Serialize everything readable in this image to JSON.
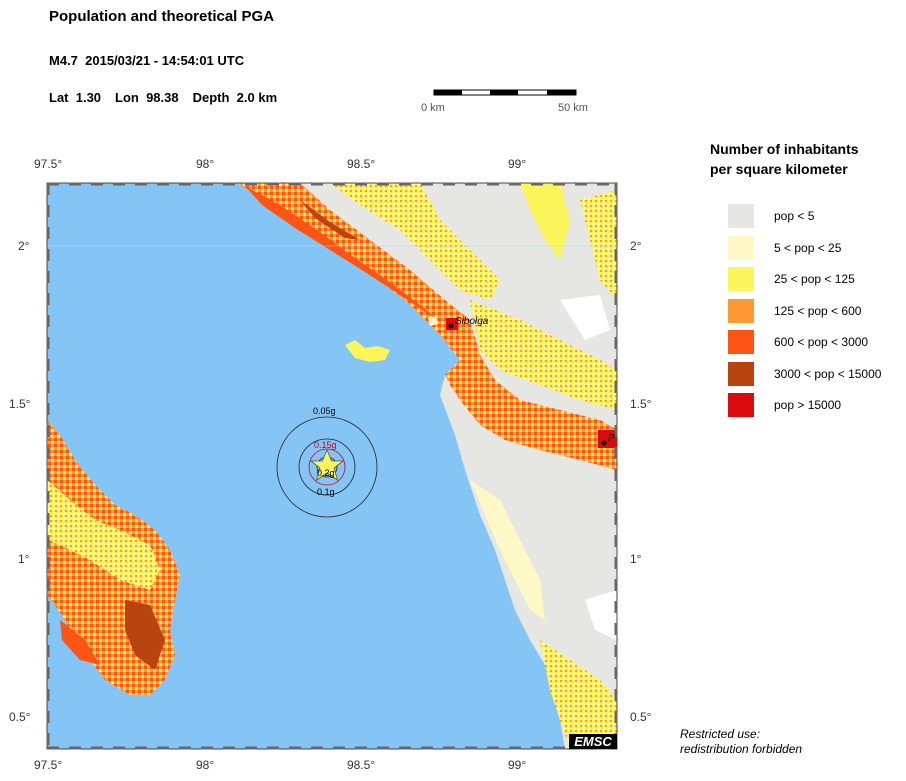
{
  "header": {
    "title": "Population and theoretical PGA",
    "event": "M4.7  2015/03/21 - 14:54:01 UTC",
    "lat": "Lat  1.30",
    "lon": "Lon  98.38",
    "depth": "Depth  2.0 km"
  },
  "scalebar": {
    "start_label": "0 km",
    "end_label": "50 km"
  },
  "legend": {
    "title_line1": "Number of inhabitants",
    "title_line2": "per square kilometer",
    "items": [
      {
        "label": "pop < 5",
        "color": "#e6e6e3"
      },
      {
        "label": "5 < pop < 25",
        "color": "#fdf8c6"
      },
      {
        "label": "25 < pop < 125",
        "color": "#fdf65a"
      },
      {
        "label": "125 < pop < 600",
        "color": "#fd9a32"
      },
      {
        "label": "600 < pop < 3000",
        "color": "#fd5516"
      },
      {
        "label": "3000 < pop < 15000",
        "color": "#b8440f"
      },
      {
        "label": "pop > 15000",
        "color": "#d90b0b"
      }
    ]
  },
  "map": {
    "lon_ticks": [
      "97.5°",
      "98°",
      "98.5°",
      "99°"
    ],
    "lat_ticks": [
      "2°",
      "1.5°",
      "1°",
      "0.5°"
    ],
    "sea_color": "#85c5f5",
    "pga_labels": [
      "0.05g",
      "0.15g",
      "0.2g",
      "0.1g"
    ],
    "city_label": "Sibolga",
    "city_label_2": "P",
    "badge": "EMSC"
  },
  "notes": {
    "line1": "Restricted use:",
    "line2": "redistribution forbidden"
  }
}
